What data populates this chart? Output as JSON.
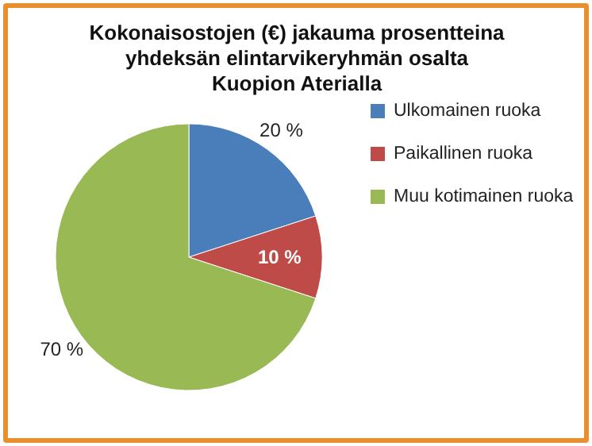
{
  "chart_data": {
    "type": "pie",
    "title": "Kokonaisostojen (€) jakauma prosentteina yhdeksän elintarvikeryhmän osalta Kuopion Aterialla",
    "categories": [
      "Ulkomainen ruoka",
      "Paikallinen ruoka",
      "Muu kotimainen ruoka"
    ],
    "values": [
      20,
      10,
      70
    ],
    "colors": [
      "#4a7ebb",
      "#be4b48",
      "#98b954"
    ],
    "value_labels": [
      "20 %",
      "10 %",
      "70 %"
    ],
    "legend": "right"
  }
}
